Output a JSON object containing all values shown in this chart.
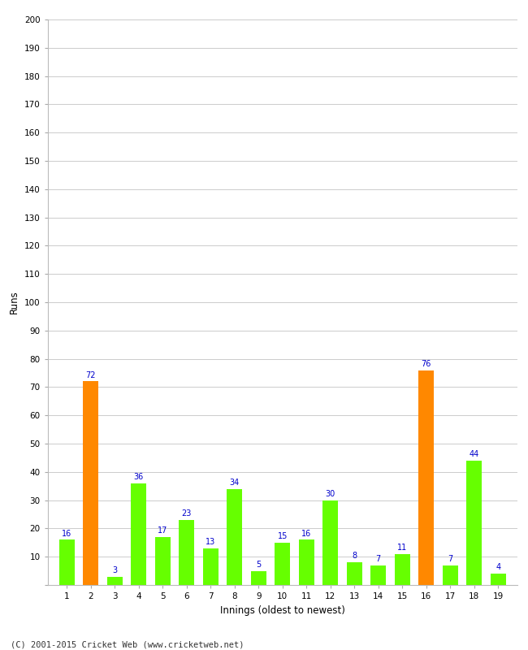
{
  "title": "",
  "xlabel": "Innings (oldest to newest)",
  "ylabel": "Runs",
  "innings": [
    1,
    2,
    3,
    4,
    5,
    6,
    7,
    8,
    9,
    10,
    11,
    12,
    13,
    14,
    15,
    16,
    17,
    18,
    19
  ],
  "values": [
    16,
    72,
    3,
    36,
    17,
    23,
    13,
    34,
    5,
    15,
    16,
    30,
    8,
    7,
    11,
    76,
    7,
    44,
    4
  ],
  "colors": [
    "#66ff00",
    "#ff8800",
    "#66ff00",
    "#66ff00",
    "#66ff00",
    "#66ff00",
    "#66ff00",
    "#66ff00",
    "#66ff00",
    "#66ff00",
    "#66ff00",
    "#66ff00",
    "#66ff00",
    "#66ff00",
    "#66ff00",
    "#ff8800",
    "#66ff00",
    "#66ff00",
    "#66ff00"
  ],
  "ylim": [
    0,
    200
  ],
  "yticks": [
    0,
    10,
    20,
    30,
    40,
    50,
    60,
    70,
    80,
    90,
    100,
    110,
    120,
    130,
    140,
    150,
    160,
    170,
    180,
    190,
    200
  ],
  "label_color": "#0000cc",
  "grid_color": "#cccccc",
  "bg_color": "#ffffff",
  "footer": "(C) 2001-2015 Cricket Web (www.cricketweb.net)"
}
